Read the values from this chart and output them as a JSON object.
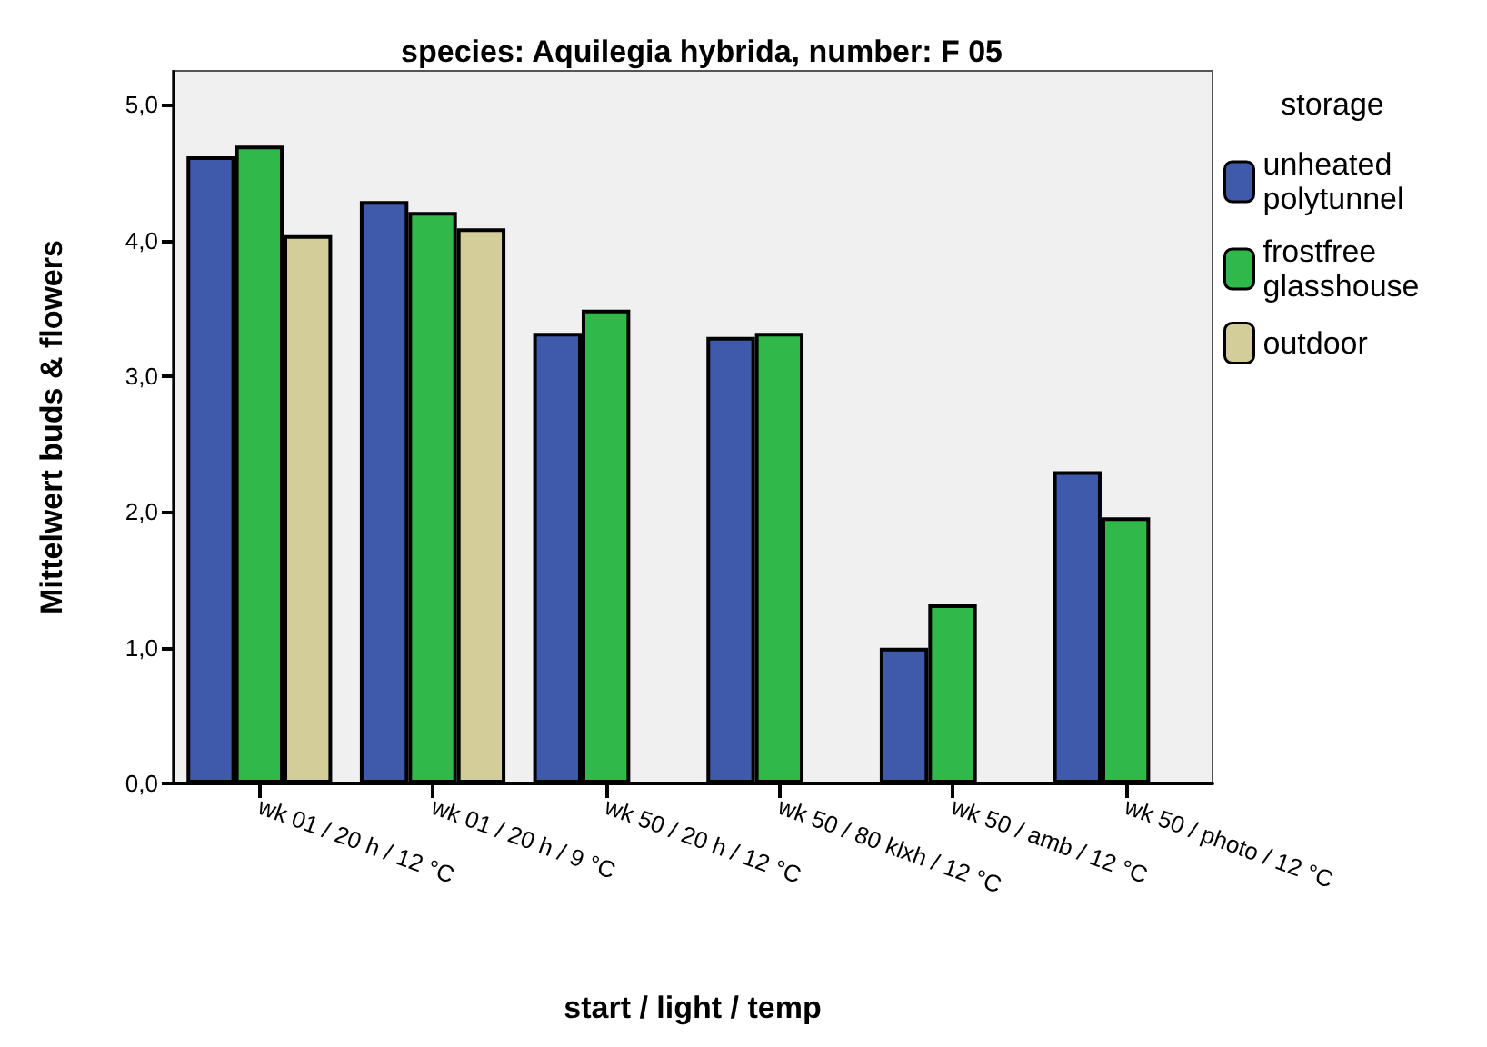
{
  "chart_data": {
    "type": "bar",
    "title": "species: Aquilegia hybrida, number: F 05",
    "xlabel": "start / light / temp",
    "ylabel": "Mittelwert buds & flowers",
    "legend_title": "storage",
    "legend": "right",
    "grid": false,
    "categories": [
      "wk 01 / 20 h / 12 °C",
      "wk 01 / 20 h / 9 °C",
      "wk 50 / 20 h / 12 °C",
      "wk 50 / 80 klxh / 12 °C",
      "wk 50 / amb / 12 °C",
      "wk 50 / photo / 12 °C"
    ],
    "series": [
      {
        "name": "unheated polytunnel",
        "color": "#3f5aab",
        "values": [
          4.62,
          4.29,
          3.32,
          3.29,
          1.0,
          2.3
        ]
      },
      {
        "name": "frostfree glasshouse",
        "color": "#30b84a",
        "values": [
          4.7,
          4.21,
          3.49,
          3.32,
          1.32,
          1.96
        ]
      },
      {
        "name": "outdoor",
        "color": "#d3ce99",
        "values": [
          4.04,
          4.09,
          null,
          null,
          null,
          null
        ]
      }
    ],
    "ylim": [
      0,
      5.25
    ],
    "yticks": [
      {
        "value": 0,
        "label": "0,0"
      },
      {
        "value": 1,
        "label": "1,0"
      },
      {
        "value": 2,
        "label": "2,0"
      },
      {
        "value": 3,
        "label": "3,0"
      },
      {
        "value": 4,
        "label": "4,0"
      },
      {
        "value": 5,
        "label": "5,0"
      }
    ]
  }
}
